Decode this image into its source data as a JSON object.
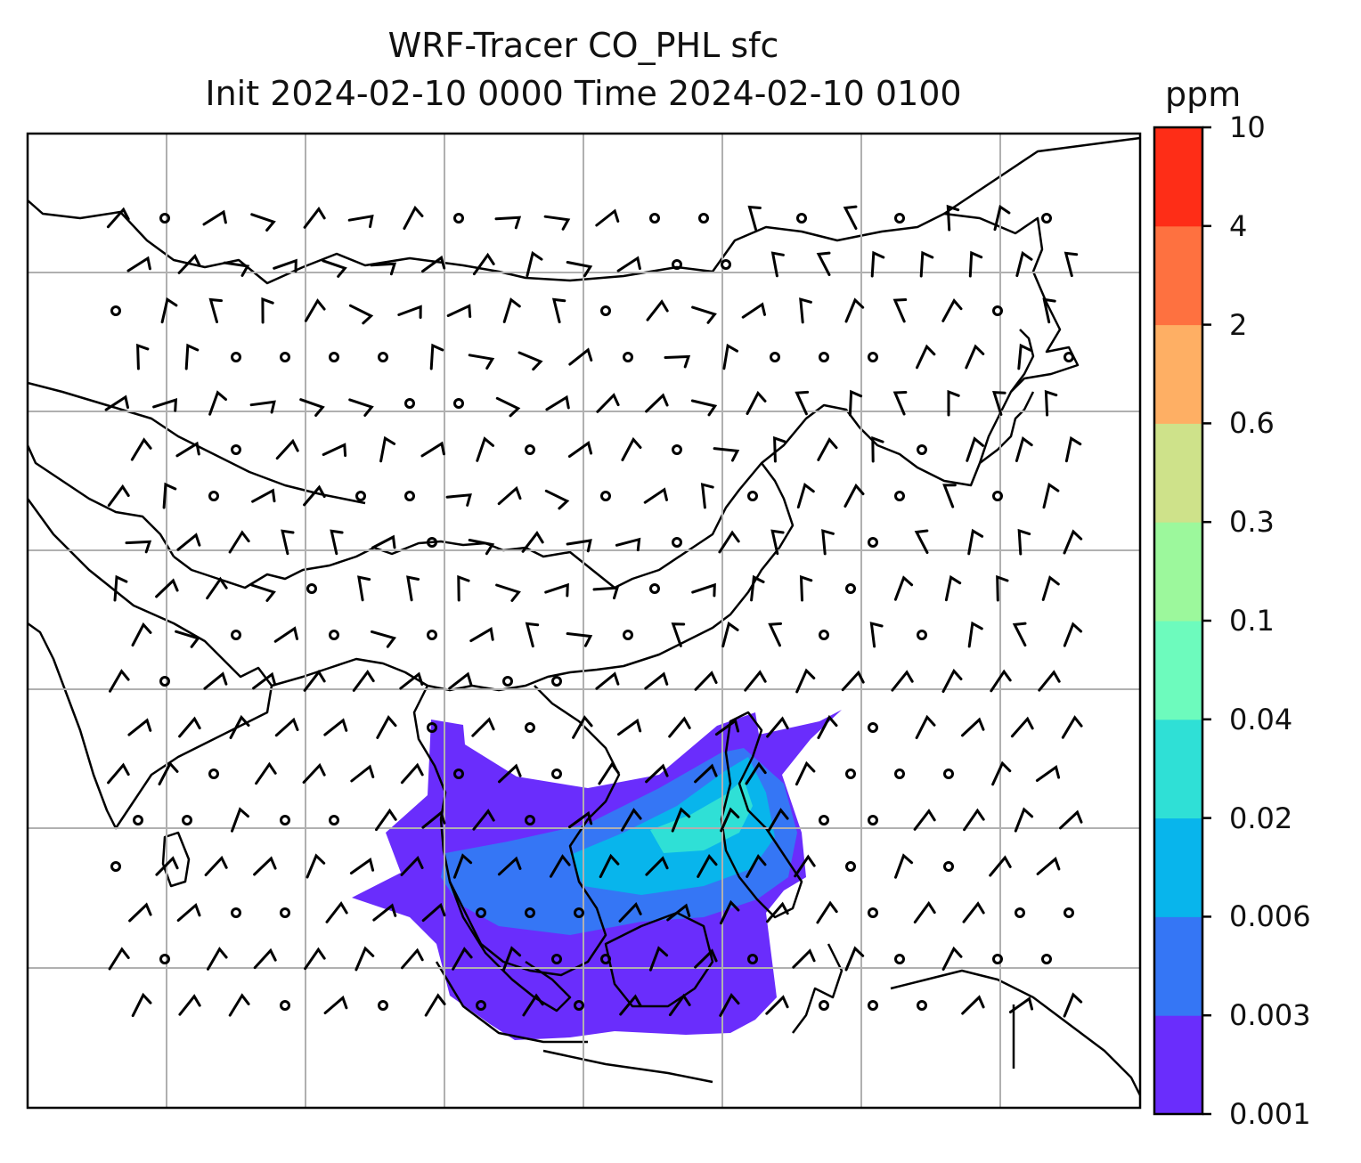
{
  "title": {
    "line1": "WRF-Tracer CO_PHL sfc",
    "line2": "Init 2024-02-10 0000 Time 2024-02-10 0100"
  },
  "colorbar": {
    "unit": "ppm",
    "levels": [
      "0.001",
      "0.003",
      "0.006",
      "0.02",
      "0.04",
      "0.1",
      "0.3",
      "0.6",
      "2",
      "4",
      "10"
    ],
    "colors": [
      "#6a2dfc",
      "#3576f5",
      "#08b5ec",
      "#2fe0d6",
      "#6dfbbd",
      "#9cf89c",
      "#cee28a",
      "#feaf64",
      "#fe7140",
      "#fe2d17"
    ]
  },
  "map": {
    "coastline_color": "#000000",
    "grid_color": "#b0b0b0",
    "barb_color": "#000000",
    "plume_colors": [
      "#6a2dfc",
      "#3576f5",
      "#08b5ec",
      "#2fe0d6"
    ]
  }
}
